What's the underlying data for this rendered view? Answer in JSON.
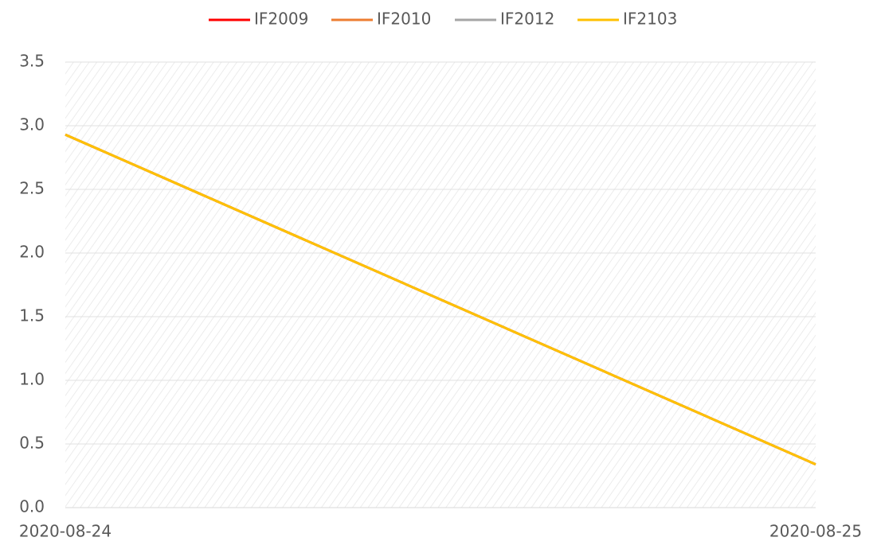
{
  "chart_data": {
    "type": "line",
    "x": [
      "2020-08-24",
      "2020-08-25"
    ],
    "series": [
      {
        "name": "IF2009",
        "color": "#ff0000",
        "values": [
          2.93,
          0.34
        ]
      },
      {
        "name": "IF2010",
        "color": "#ed7d31",
        "values": [
          2.93,
          0.34
        ]
      },
      {
        "name": "IF2012",
        "color": "#a5a5a5",
        "values": [
          2.93,
          0.34
        ]
      },
      {
        "name": "IF2103",
        "color": "#ffc000",
        "values": [
          2.93,
          0.34
        ]
      }
    ],
    "ylim": [
      0,
      3.5
    ],
    "yticks": [
      {
        "value": 0,
        "label": "0.0"
      },
      0.5,
      {
        "value": 1,
        "label": "1.0"
      },
      1.5,
      {
        "value": 2,
        "label": "2.0"
      },
      2.5,
      {
        "value": 3,
        "label": "3.0"
      },
      3.5
    ],
    "grid": true,
    "legend": "top"
  }
}
